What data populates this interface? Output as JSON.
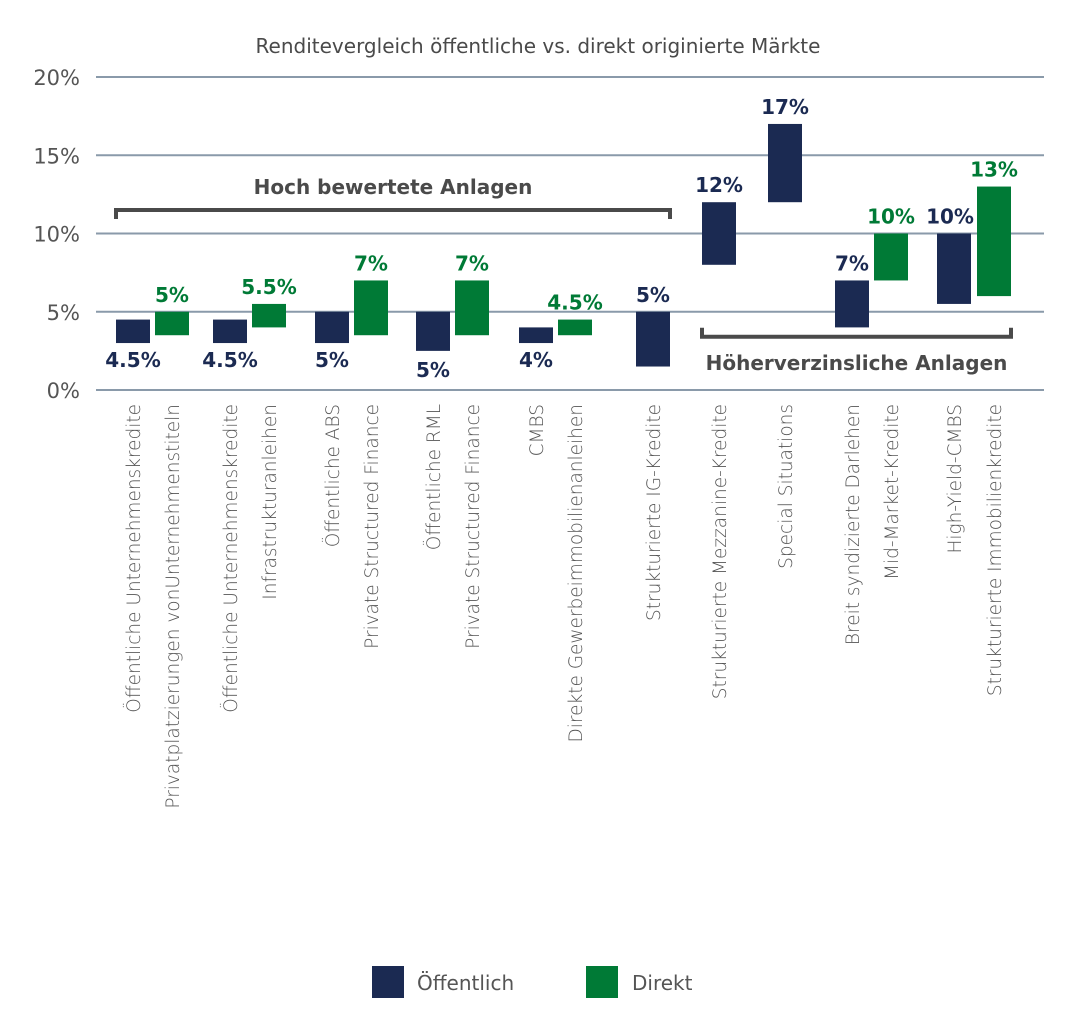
{
  "chart_data": {
    "type": "bar",
    "subtype": "floating-range",
    "title": "Renditevergleich öffentliche vs. direkt originierte Märkte",
    "xlabel": "",
    "ylabel": "",
    "ylim": [
      0,
      20
    ],
    "yticks": [
      0,
      5,
      10,
      15,
      20
    ],
    "ytick_labels": [
      "0%",
      "5%",
      "10%",
      "15%",
      "20%"
    ],
    "grid": true,
    "legend_position": "bottom-center",
    "colors": {
      "Öffentlich": "#1b2a52",
      "Direkt": "#007a36",
      "bracket": "#4a4a4a",
      "grid": "#8a9aaa"
    },
    "series": [
      {
        "name": "Öffentlich",
        "color": "#1b2a52"
      },
      {
        "name": "Direkt",
        "color": "#007a36"
      }
    ],
    "bars": [
      {
        "category": "Öffentliche Unternehmenskredite",
        "series": "Öffentlich",
        "low": 3.0,
        "high": 4.5,
        "label": "4.5%",
        "label_pos": "below"
      },
      {
        "category": "Privatplatzierungen vonUnternehmenstiteln",
        "series": "Direkt",
        "low": 3.5,
        "high": 5.0,
        "label": "5%",
        "label_pos": "above"
      },
      {
        "category": "Öffentliche Unternehmenskredite",
        "series": "Öffentlich",
        "low": 3.0,
        "high": 4.5,
        "label": "4.5%",
        "label_pos": "below"
      },
      {
        "category": "Infrastrukturanleihen",
        "series": "Direkt",
        "low": 4.0,
        "high": 5.5,
        "label": "5.5%",
        "label_pos": "above"
      },
      {
        "category": "Öffentliche ABS",
        "series": "Öffentlich",
        "low": 3.0,
        "high": 5.0,
        "label": "5%",
        "label_pos": "below"
      },
      {
        "category": "Private Structured Finance",
        "series": "Direkt",
        "low": 3.5,
        "high": 7.0,
        "label": "7%",
        "label_pos": "above"
      },
      {
        "category": "Öffentliche RML",
        "series": "Öffentlich",
        "low": 2.5,
        "high": 5.0,
        "label": "5%",
        "label_pos": "below"
      },
      {
        "category": "Private Structured Finance",
        "series": "Direkt",
        "low": 3.5,
        "high": 7.0,
        "label": "7%",
        "label_pos": "above"
      },
      {
        "category": "CMBS",
        "series": "Öffentlich",
        "low": 3.0,
        "high": 4.0,
        "label": "4%",
        "label_pos": "below"
      },
      {
        "category": "Direkte Gewerbeimmobilienanleihen",
        "series": "Direkt",
        "low": 3.5,
        "high": 4.5,
        "label": "4.5%",
        "label_pos": "above"
      },
      {
        "category": "Strukturierte IG-Kredite",
        "series": "Öffentlich",
        "low": 1.5,
        "high": 5.0,
        "label": "5%",
        "label_pos": "above"
      },
      {
        "category": "Strukturierte Mezzanine-Kredite",
        "series": "Öffentlich",
        "low": 8.0,
        "high": 12.0,
        "label": "12%",
        "label_pos": "above"
      },
      {
        "category": "Special Situations",
        "series": "Öffentlich",
        "low": 12.0,
        "high": 17.0,
        "label": "17%",
        "label_pos": "above"
      },
      {
        "category": "Breit syndizierte Darlehen",
        "series": "Öffentlich",
        "low": 4.0,
        "high": 7.0,
        "label": "7%",
        "label_pos": "above"
      },
      {
        "category": "Mid-Market-Kredite",
        "series": "Direkt",
        "low": 7.0,
        "high": 10.0,
        "label": "10%",
        "label_pos": "above"
      },
      {
        "category": "High-Yield-CMBS",
        "series": "Öffentlich",
        "low": 5.5,
        "high": 10.0,
        "label": "10%",
        "label_pos": "above"
      },
      {
        "category": "Strukturierte Immobilienkredite",
        "series": "Direkt",
        "low": 6.0,
        "high": 13.0,
        "label": "13%",
        "label_pos": "above"
      }
    ],
    "annotations": [
      {
        "text": "Hoch bewertete Anlagen",
        "type": "bracket",
        "from_bar": 0,
        "to_bar": 10,
        "level": 11.5,
        "text_side": "above"
      },
      {
        "text": "Höherverzinsliche Anlagen",
        "type": "bracket",
        "from_bar": 11,
        "to_bar": 16,
        "level": 3.4,
        "text_side": "below"
      }
    ]
  }
}
